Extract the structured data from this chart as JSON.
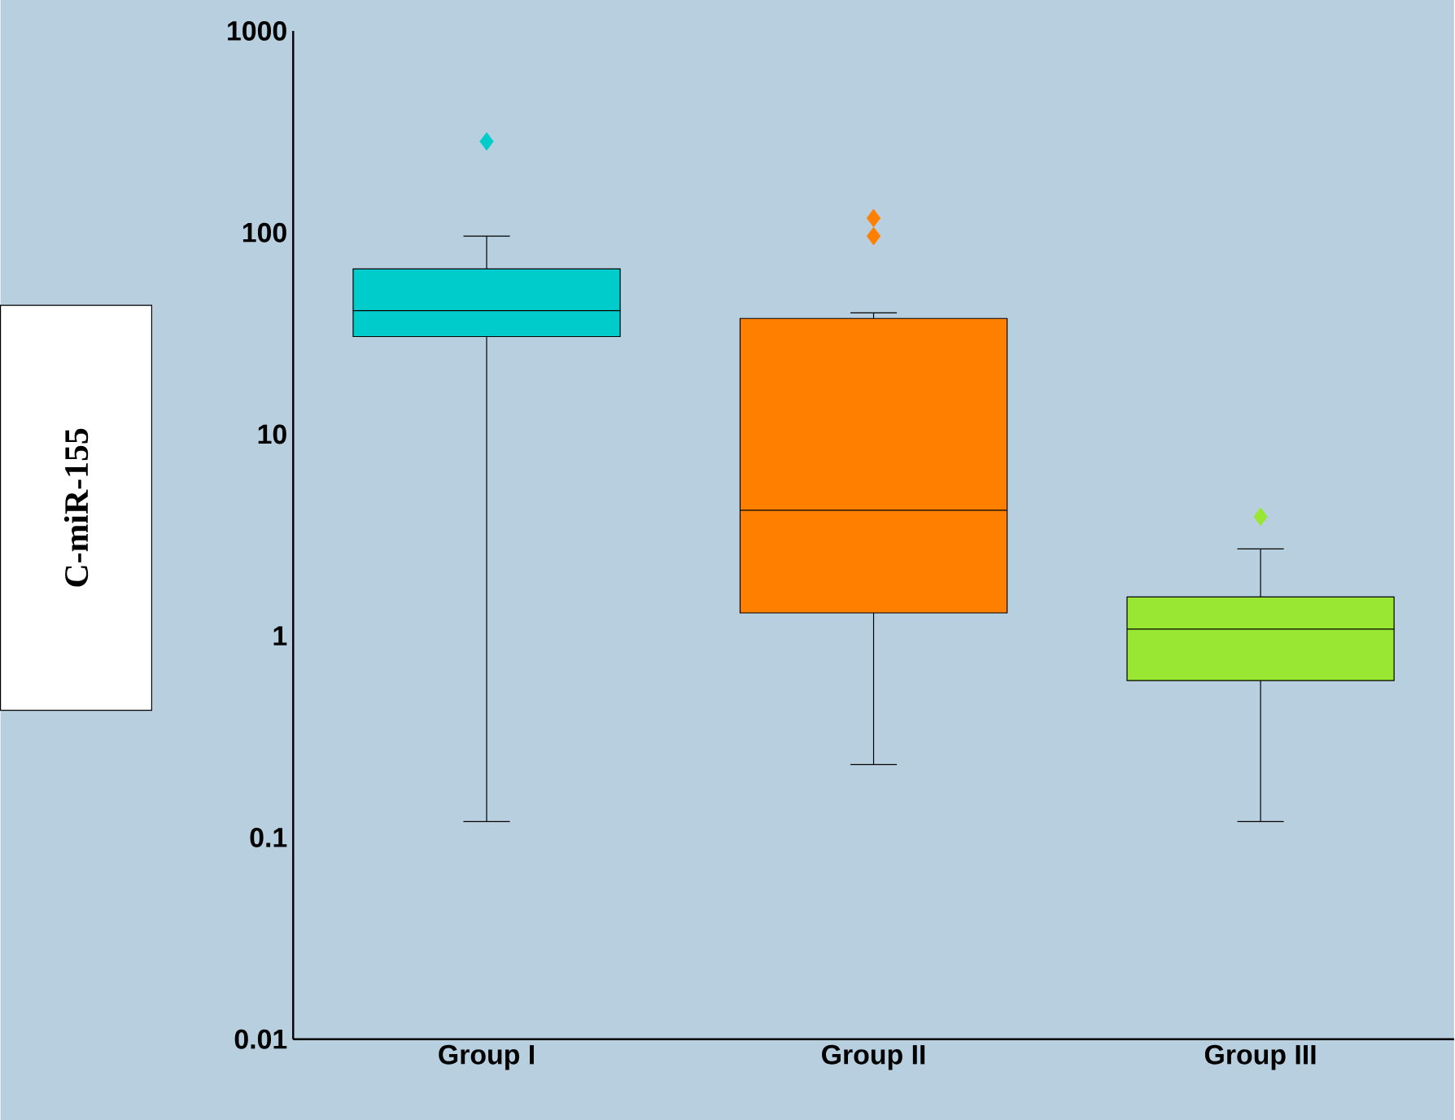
{
  "chart_data": {
    "type": "box",
    "ylabel": "C-miR-155",
    "categories": [
      "Group I",
      "Group II",
      "Group III"
    ],
    "boxes": [
      {
        "low": 0.12,
        "q1": 30.5,
        "median": 41,
        "q3": 66,
        "high": 96,
        "outliers": [
          283
        ]
      },
      {
        "low": 0.23,
        "q1": 1.3,
        "median": 4.2,
        "q3": 37.5,
        "high": 40,
        "outliers": [
          118,
          96
        ]
      },
      {
        "low": 0.12,
        "q1": 0.6,
        "median": 1.08,
        "q3": 1.56,
        "high": 2.7,
        "outliers": [
          3.9
        ]
      }
    ],
    "colors": [
      "#00cccc",
      "#ff8000",
      "#99e633"
    ],
    "log": "y",
    "ylim": [
      0.01,
      1000
    ],
    "yticks": [
      0.01,
      0.1,
      1,
      10,
      100,
      1000
    ],
    "marker": "diamond"
  }
}
